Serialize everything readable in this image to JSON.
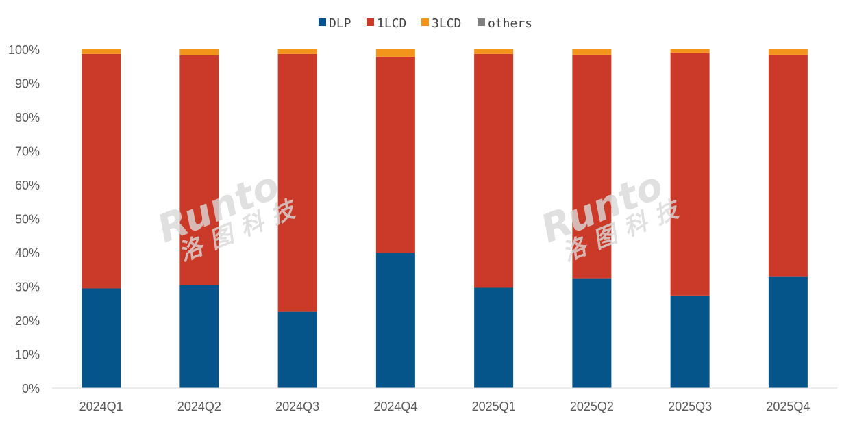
{
  "chart_data": {
    "type": "bar",
    "stacked": true,
    "categories": [
      "2024Q1",
      "2024Q2",
      "2024Q3",
      "2024Q4",
      "2025Q1",
      "2025Q2",
      "2025Q3",
      "2025Q4"
    ],
    "series": [
      {
        "name": "DLP",
        "color": "#05558a",
        "values": [
          29.4,
          30.4,
          22.5,
          39.9,
          29.6,
          32.4,
          27.3,
          32.8
        ]
      },
      {
        "name": "1LCD",
        "color": "#cb3a28",
        "values": [
          69.2,
          67.8,
          76.1,
          57.9,
          69.0,
          66.0,
          71.7,
          65.6
        ]
      },
      {
        "name": "3LCD",
        "color": "#f3951b",
        "values": [
          1.4,
          1.8,
          1.4,
          2.2,
          1.4,
          1.6,
          1.0,
          1.6
        ]
      },
      {
        "name": "others",
        "color": "#808080",
        "values": [
          0,
          0,
          0,
          0,
          0,
          0,
          0,
          0
        ]
      }
    ],
    "yticks": [
      "0%",
      "10%",
      "20%",
      "30%",
      "40%",
      "50%",
      "60%",
      "70%",
      "80%",
      "90%",
      "100%"
    ],
    "ylim": [
      0,
      100
    ],
    "grid": false,
    "legend_position": "top"
  },
  "watermark": {
    "brand": "Runto",
    "chinese": "洛图科技"
  }
}
